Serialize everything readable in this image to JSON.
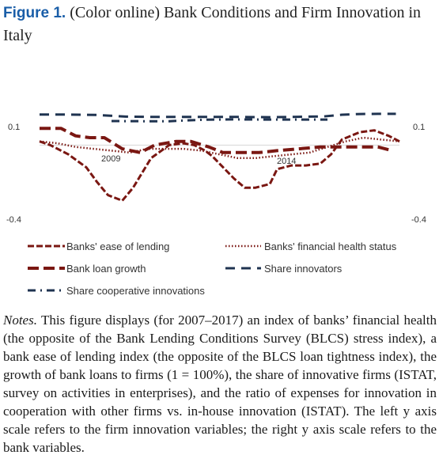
{
  "figure": {
    "label": "Figure 1.",
    "title": "(Color online) Bank Conditions and Firm Innovation in Italy"
  },
  "notes": {
    "label": "Notes.",
    "text": "This figure displays (for 2007–2017) an index of banks’ financial health (the opposite of the Bank Lending Conditions Survey (BLCS) stress index), a bank ease of lending index (the opposite of the BLCS loan tightness index), the growth of bank loans to firms (1 = 100%), the share of innovative firms (ISTAT, survey on activities in enterprises), and the ratio of expenses for innovation in cooperation with other firms vs. in-house innovation (ISTAT). The left y axis scale refers to the firm innovation variables; the right y axis scale refers to the bank variables."
  },
  "colors": {
    "dark_red": "#7a1712",
    "navy": "#1f3350",
    "baseline": "#d6d6d6"
  },
  "chart_data": {
    "type": "line",
    "x_tick_labels": [
      "2009",
      "2014"
    ],
    "y_left_ticks": [
      "0.1",
      "-0.4"
    ],
    "y_right_ticks": [
      "0.1",
      "-0.4"
    ],
    "y_left_range": [
      -0.4,
      0.1
    ],
    "y_right_range": [
      -0.4,
      0.1
    ],
    "grid": false,
    "legend_position": "bottom",
    "series": [
      {
        "name": "Banks' ease of lending",
        "axis": "right",
        "style": "long-dash",
        "color": "#7a1712",
        "x": [
          2007.0,
          2007.3,
          2007.8,
          2008.3,
          2008.6,
          2008.9,
          2009.3,
          2009.6,
          2010.1,
          2010.6,
          2011.0,
          2011.3,
          2011.6,
          2011.8,
          2012.0,
          2012.4,
          2012.7,
          2013.0,
          2013.4,
          2013.6,
          2014.0,
          2014.4,
          2014.8,
          2015.1,
          2015.4,
          2015.9,
          2016.3,
          2016.7,
          2017.0
        ],
        "y": [
          0.02,
          0.0,
          -0.05,
          -0.12,
          -0.2,
          -0.27,
          -0.3,
          -0.23,
          -0.07,
          0.0,
          0.01,
          0.0,
          -0.03,
          -0.06,
          -0.1,
          -0.18,
          -0.23,
          -0.23,
          -0.21,
          -0.13,
          -0.11,
          -0.11,
          -0.1,
          -0.05,
          0.03,
          0.07,
          0.08,
          0.05,
          0.02
        ]
      },
      {
        "name": "Banks' financial health status",
        "axis": "right",
        "style": "dotted",
        "color": "#7a1712",
        "x": [
          2007.0,
          2007.5,
          2008.0,
          2008.5,
          2009.0,
          2009.5,
          2010.0,
          2010.5,
          2011.0,
          2011.5,
          2012.0,
          2012.5,
          2013.0,
          2013.5,
          2014.0,
          2014.5,
          2015.0,
          2015.5,
          2016.0,
          2016.5,
          2017.0
        ],
        "y": [
          0.02,
          0.01,
          -0.01,
          -0.02,
          -0.03,
          -0.04,
          -0.02,
          -0.02,
          -0.02,
          -0.03,
          -0.05,
          -0.07,
          -0.07,
          -0.06,
          -0.05,
          -0.04,
          -0.01,
          0.02,
          0.04,
          0.03,
          0.02
        ]
      },
      {
        "name": "Bank loan growth",
        "axis": "right",
        "style": "heavy-dash",
        "color": "#7a1712",
        "x": [
          2007.0,
          2007.6,
          2008.0,
          2008.4,
          2008.8,
          2009.3,
          2009.8,
          2010.2,
          2010.8,
          2011.2,
          2011.7,
          2012.1,
          2012.6,
          2013.1,
          2013.6,
          2014.2,
          2014.8,
          2015.3,
          2015.9,
          2016.4,
          2016.8
        ],
        "y": [
          0.09,
          0.09,
          0.05,
          0.04,
          0.04,
          -0.02,
          -0.04,
          0.0,
          0.02,
          0.02,
          -0.01,
          -0.04,
          -0.04,
          -0.04,
          -0.03,
          -0.02,
          -0.01,
          -0.01,
          -0.01,
          -0.01,
          -0.03
        ]
      },
      {
        "name": "Share innovators",
        "axis": "left",
        "style": "dash",
        "color": "#1f3350",
        "x": [
          2007.0,
          2007.8,
          2008.6,
          2009.4,
          2010.2,
          2011.0,
          2011.8,
          2012.6,
          2013.4,
          2014.2,
          2014.9,
          2015.4,
          2015.9,
          2016.4,
          2016.9
        ],
        "y": [
          0.165,
          0.165,
          0.163,
          0.154,
          0.152,
          0.152,
          0.152,
          0.152,
          0.151,
          0.153,
          0.155,
          0.164,
          0.168,
          0.169,
          0.169
        ]
      },
      {
        "name": "Share cooperative innovations",
        "axis": "left",
        "style": "dash-dot",
        "color": "#1f3350",
        "x": [
          2009.0,
          2009.8,
          2010.6,
          2011.0,
          2011.6,
          2012.4,
          2013.2,
          2014.0,
          2014.6,
          2015.0
        ],
        "y": [
          0.13,
          0.129,
          0.129,
          0.133,
          0.137,
          0.139,
          0.138,
          0.138,
          0.138,
          0.138
        ]
      }
    ]
  }
}
